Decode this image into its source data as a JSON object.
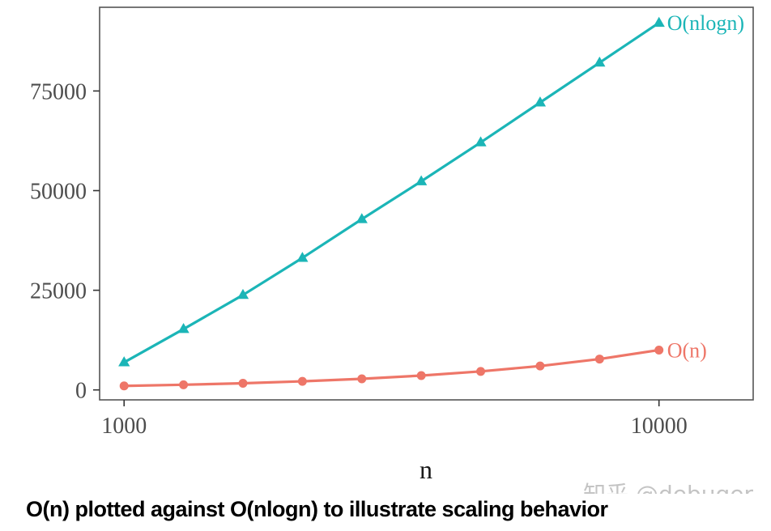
{
  "caption": "O(n) plotted against O(nlogn) to illustrate scaling behavior",
  "watermark": "知乎 @debuger",
  "chart_data": {
    "type": "line",
    "xscale": "log",
    "xlabel": "n",
    "ylabel": "",
    "xlim": [
      900,
      15000
    ],
    "ylim": [
      -2500,
      96000
    ],
    "xticks": [
      1000,
      10000
    ],
    "yticks": [
      0,
      25000,
      50000,
      75000
    ],
    "grid": false,
    "legend": "direct labels at line ends",
    "x": [
      1000,
      1291.5,
      1668.1,
      2154.4,
      2782.6,
      3593.8,
      4641.6,
      5994.8,
      7742.6,
      10000
    ],
    "series": [
      {
        "name": "O(nlogn)",
        "marker": "triangle",
        "color": "#1bb5b7",
        "values": [
          6908,
          15261,
          23815,
          33123,
          42844,
          52336,
          62097,
          72113,
          82103,
          92103
        ]
      },
      {
        "name": "O(n)",
        "marker": "circle",
        "color": "#ee7668",
        "values": [
          1000,
          1292,
          1668,
          2154,
          2783,
          3594,
          4642,
          5995,
          7743,
          10000
        ]
      }
    ]
  }
}
